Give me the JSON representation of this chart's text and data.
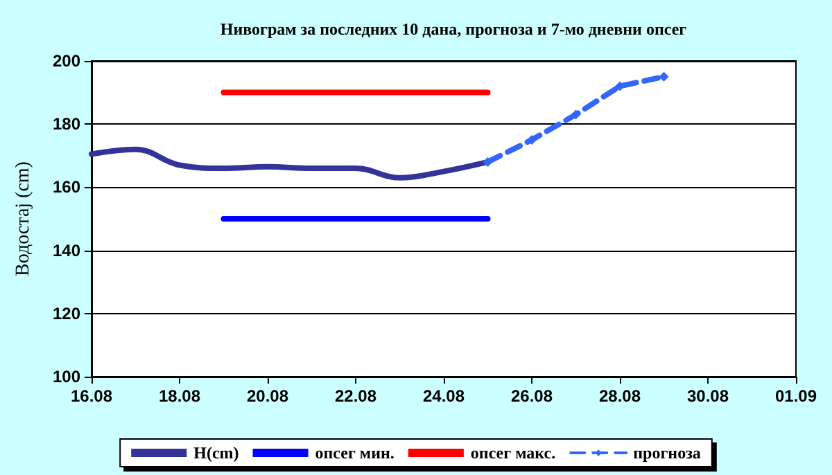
{
  "chart_data": {
    "type": "line",
    "title": "Нивограм за последних 10 дана, прогноза и 7-мо дневни опсег",
    "ylabel": "Водостај (cm)",
    "xlim": [
      "--08-16",
      "--09-01"
    ],
    "xticks": [
      {
        "value": "--08-16",
        "label": "16.08"
      },
      {
        "value": "--08-18",
        "label": "18.08"
      },
      {
        "value": "--08-20",
        "label": "20.08"
      },
      {
        "value": "--08-22",
        "label": "22.08"
      },
      {
        "value": "--08-24",
        "label": "24.08"
      },
      {
        "value": "--08-26",
        "label": "26.08"
      },
      {
        "value": "--08-28",
        "label": "28.08"
      },
      {
        "value": "--08-30",
        "label": "30.08"
      },
      {
        "value": "--09-01",
        "label": "01.09"
      }
    ],
    "ylim": [
      100,
      200
    ],
    "yticks": [
      100,
      120,
      140,
      160,
      180,
      200
    ],
    "grid": "y",
    "legend": "bottom",
    "series": [
      {
        "name": "H(cm)",
        "color": "#333399",
        "marker": "none",
        "line_style": "solid",
        "x": [
          "--08-16",
          "--08-17",
          "--08-18",
          "--08-19",
          "--08-20",
          "--08-21",
          "--08-22",
          "--08-23",
          "--08-24",
          "--08-25"
        ],
        "values": [
          170.5,
          172,
          167,
          166,
          166.5,
          166,
          166,
          163,
          165,
          168
        ]
      },
      {
        "name": "опсег мин.",
        "color": "#0000ff",
        "marker": "none",
        "line_style": "solid",
        "x": [
          "--08-19",
          "--08-25"
        ],
        "values": [
          150,
          150
        ]
      },
      {
        "name": "опсег макс.",
        "color": "#ff0000",
        "marker": "none",
        "line_style": "solid",
        "x": [
          "--08-19",
          "--08-25"
        ],
        "values": [
          190,
          190
        ]
      },
      {
        "name": "прогноза",
        "color": "#3366ff",
        "marker": "diamond",
        "line_style": "dashed",
        "x": [
          "--08-25",
          "--08-26",
          "--08-27",
          "--08-28",
          "--08-29"
        ],
        "values": [
          168,
          175,
          183,
          192,
          195
        ]
      }
    ]
  }
}
